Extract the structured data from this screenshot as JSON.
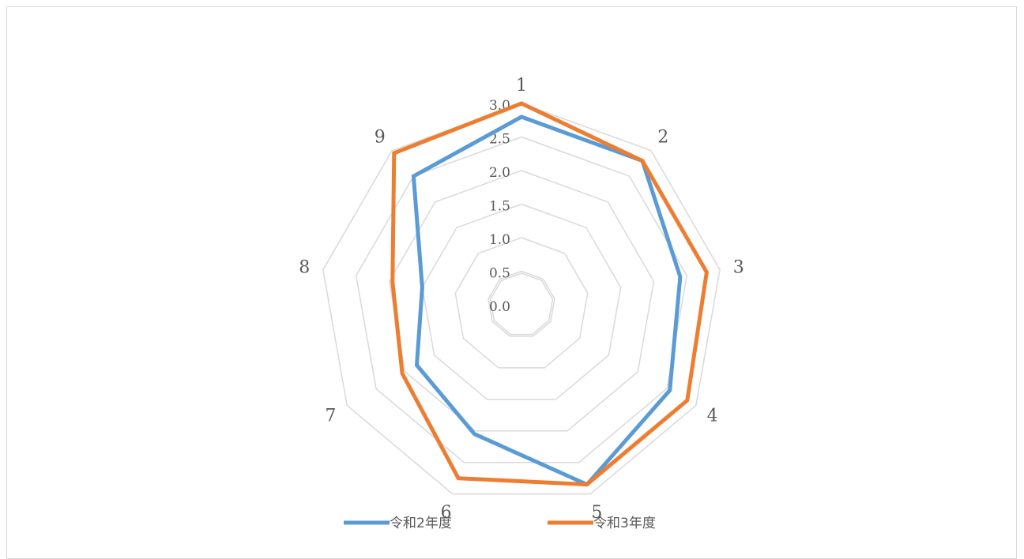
{
  "chart_data": {
    "type": "radar",
    "title": "",
    "categories": [
      "1",
      "2",
      "3",
      "4",
      "5",
      "6",
      "7",
      "8",
      "9"
    ],
    "rlim": [
      0.0,
      3.0
    ],
    "ticks": [
      "0.0",
      "0.5",
      "1.0",
      "1.5",
      "2.0",
      "2.5",
      "3.0"
    ],
    "grid": true,
    "legend_position": "bottom",
    "series": [
      {
        "name": "令和2年度",
        "color": "#5b9bd5",
        "values": [
          2.8,
          2.8,
          2.4,
          2.55,
          2.85,
          2.05,
          1.8,
          1.5,
          2.5
        ]
      },
      {
        "name": "令和3年度",
        "color": "#ed7d31",
        "values": [
          3.0,
          2.8,
          2.8,
          2.85,
          2.85,
          2.75,
          2.05,
          1.95,
          2.95
        ]
      }
    ]
  }
}
